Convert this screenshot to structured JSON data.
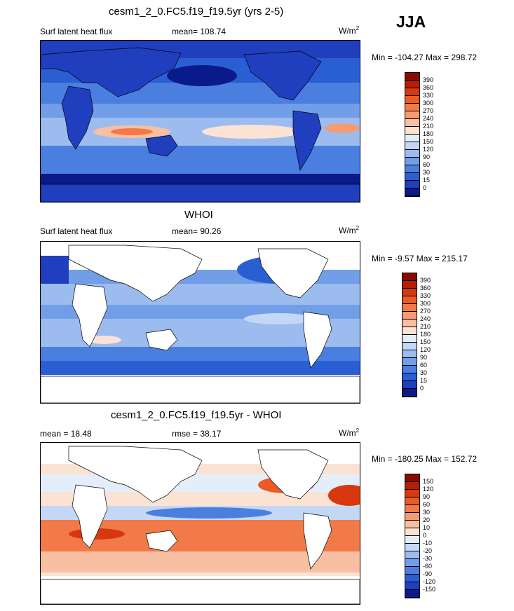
{
  "season": "JJA",
  "units_base": "W/m",
  "units_sup": "2",
  "panels": [
    {
      "title": "cesm1_2_0.FC5.f19_f19.5yr (yrs 2-5)",
      "left_label": "Surf latent heat flux",
      "center_label": "mean= 108.74",
      "minmax": "Min = -104.27 Max = 298.72",
      "colorbar": {
        "ticks": [
          "390",
          "360",
          "330",
          "300",
          "270",
          "240",
          "210",
          "180",
          "150",
          "120",
          "90",
          "60",
          "30",
          "15",
          "0"
        ],
        "colors": [
          "#8a0a00",
          "#b51d05",
          "#d8380f",
          "#ec5a26",
          "#f27a48",
          "#f59b73",
          "#f8bfa2",
          "#fbe3d3",
          "#e4eefb",
          "#c4d8f6",
          "#9cbcf0",
          "#729ee8",
          "#4a7fe0",
          "#2a5fd4",
          "#1f3fbf",
          "#0a1a8a"
        ]
      },
      "map": "model"
    },
    {
      "title": "WHOI",
      "left_label": "Surf latent heat flux",
      "center_label": "mean=  90.26",
      "minmax": "Min =  -9.57 Max = 215.17",
      "colorbar": {
        "ticks": [
          "390",
          "360",
          "330",
          "300",
          "270",
          "240",
          "210",
          "180",
          "150",
          "120",
          "90",
          "60",
          "30",
          "15",
          "0"
        ],
        "colors": [
          "#8a0a00",
          "#b51d05",
          "#d8380f",
          "#ec5a26",
          "#f27a48",
          "#f59b73",
          "#f8bfa2",
          "#fbe3d3",
          "#e4eefb",
          "#c4d8f6",
          "#9cbcf0",
          "#729ee8",
          "#4a7fe0",
          "#2a5fd4",
          "#1f3fbf",
          "#0a1a8a"
        ]
      },
      "map": "obs"
    },
    {
      "title": "cesm1_2_0.FC5.f19_f19.5yr - WHOI",
      "left_label": "mean =  18.48",
      "center_label": "rmse =  38.17",
      "minmax": "Min = -180.25 Max = 152.72",
      "colorbar": {
        "ticks": [
          "150",
          "120",
          "90",
          "60",
          "30",
          "20",
          "10",
          "0",
          "-10",
          "-20",
          "-30",
          "-60",
          "-90",
          "-120",
          "-150"
        ],
        "colors": [
          "#8a0a00",
          "#b51d05",
          "#d8380f",
          "#ec5a26",
          "#f27a48",
          "#f59b73",
          "#f8bfa2",
          "#fbe3d3",
          "#e4eefb",
          "#c4d8f6",
          "#9cbcf0",
          "#729ee8",
          "#4a7fe0",
          "#2a5fd4",
          "#1f3fbf",
          "#0a1a8a"
        ]
      },
      "map": "diff"
    }
  ]
}
